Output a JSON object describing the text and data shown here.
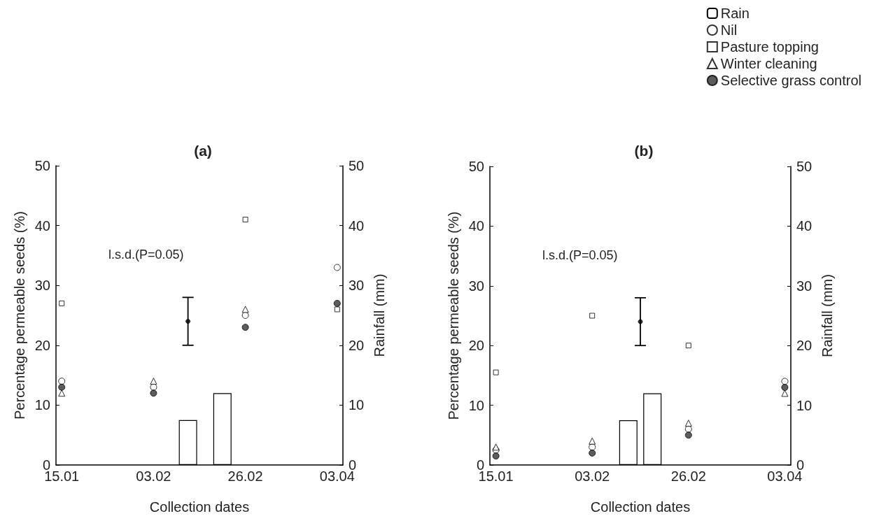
{
  "chart_data": [
    {
      "type": "scatter",
      "title": "(a)",
      "xlabel": "Collection dates",
      "ylabel": "Percentage permeable seeds (%)",
      "y2label": "Rainfall (mm)",
      "categories": [
        "15.01",
        null,
        null,
        null,
        null,
        null,
        null,
        null,
        "03.02",
        null,
        null,
        null,
        null,
        null,
        null,
        null,
        "26.02",
        null,
        null,
        null,
        null,
        null,
        null,
        null,
        "03.04"
      ],
      "ylim": [
        0,
        50
      ],
      "yticks": [
        0,
        10,
        20,
        30,
        40,
        50
      ],
      "y2lim": [
        0,
        50
      ],
      "y2ticks": [
        0,
        10,
        20,
        30,
        40,
        50
      ],
      "grid": false,
      "legend": false,
      "annotations": [
        "l.s.d.(P=0.05)"
      ],
      "series": [
        {
          "type": "bar",
          "axis": "y2",
          "color": "#ffffff",
          "values": [
            null,
            null,
            null,
            null,
            null,
            null,
            null,
            null,
            null,
            null,
            null,
            7.5,
            null,
            null,
            12,
            null,
            null,
            null,
            null,
            null,
            null,
            null,
            null,
            null,
            null
          ]
        },
        {
          "type": "scatter",
          "marker": "none",
          "color": "#000000",
          "values": [
            null,
            null,
            null,
            null,
            null,
            null,
            null,
            null,
            null,
            null,
            null,
            24,
            null,
            null,
            null,
            null,
            null,
            null,
            null,
            null,
            null,
            null,
            null,
            null,
            null
          ],
          "errors": [
            null,
            null,
            null,
            null,
            null,
            null,
            null,
            null,
            null,
            null,
            null,
            4,
            null,
            null,
            null,
            null,
            null,
            null,
            null,
            null,
            null,
            null,
            null,
            null,
            null
          ]
        },
        {
          "marker": "circle",
          "color": "#ffffff",
          "x": [
            "15.01",
            "03.02",
            "26.02",
            "03.04"
          ],
          "values": [
            14,
            13,
            25,
            33
          ]
        },
        {
          "marker": "square",
          "color": "#ffffff",
          "x": [
            "15.01",
            "03.02",
            "26.02",
            "03.04"
          ],
          "values": [
            27,
            null,
            41,
            26
          ]
        },
        {
          "marker": "triangle",
          "color": "#ffffff",
          "x": [
            "15.01",
            "03.02",
            "26.02",
            "03.04"
          ],
          "values": [
            12,
            14,
            26,
            null
          ]
        },
        {
          "marker": "circle",
          "color": "#333333",
          "x": [
            "15.01",
            "03.02",
            "26.02",
            "03.04"
          ],
          "values": [
            13,
            12,
            23,
            27
          ]
        }
      ]
    },
    {
      "type": "scatter",
      "title": "(b)",
      "xlabel": "Collection dates",
      "ylabel": "Percentage permeable seeds (%)",
      "y2label": "Rainfall (mm)",
      "categories": [
        "15.01",
        null,
        null,
        null,
        null,
        null,
        null,
        null,
        "03.02",
        null,
        null,
        null,
        null,
        null,
        null,
        null,
        "26.02",
        null,
        null,
        null,
        null,
        null,
        null,
        null,
        "03.04"
      ],
      "ylim": [
        0,
        50
      ],
      "yticks": [
        0,
        10,
        20,
        30,
        40,
        50
      ],
      "y2lim": [
        0,
        50
      ],
      "y2ticks": [
        0,
        10,
        20,
        30,
        40,
        50
      ],
      "grid": false,
      "legend": "top right",
      "annotations": [
        "l.s.d.(P=0.05)"
      ],
      "series": [
        {
          "type": "bar",
          "axis": "y2",
          "name": "Rain",
          "color": "#ffffff",
          "values": [
            null,
            null,
            null,
            null,
            null,
            null,
            null,
            null,
            null,
            null,
            null,
            7.5,
            null,
            12,
            null,
            null,
            null,
            null,
            null,
            null,
            null,
            null,
            null,
            null,
            null
          ]
        },
        {
          "type": "scatter",
          "marker": "none",
          "color": "#000000",
          "values": [
            null,
            null,
            null,
            null,
            null,
            null,
            null,
            null,
            null,
            null,
            null,
            null,
            24,
            null,
            null,
            null,
            null,
            null,
            null,
            null,
            null,
            null,
            null,
            null,
            null
          ],
          "errors": [
            null,
            null,
            null,
            null,
            null,
            null,
            null,
            null,
            null,
            null,
            null,
            null,
            4,
            null,
            null,
            null,
            null,
            null,
            null,
            null,
            null,
            null,
            null,
            null,
            null
          ]
        },
        {
          "name": "Nil",
          "marker": "circle",
          "color": "#ffffff",
          "x": [
            "15.01",
            "03.02",
            "26.02",
            "03.04"
          ],
          "values": [
            2.5,
            3,
            6,
            14
          ]
        },
        {
          "name": "Pasture topping",
          "marker": "square",
          "color": "#ffffff",
          "x": [
            "15.01",
            "03.02",
            "26.02",
            "03.04"
          ],
          "values": [
            15.5,
            25,
            20,
            null
          ]
        },
        {
          "name": "Winter cleaning",
          "marker": "triangle",
          "color": "#ffffff",
          "x": [
            "15.01",
            "03.02",
            "26.02",
            "03.04"
          ],
          "values": [
            3,
            4,
            7,
            12
          ]
        },
        {
          "name": "Selective grass control",
          "marker": "circle",
          "color": "#333333",
          "x": [
            "15.01",
            "03.02",
            "26.02",
            "03.04"
          ],
          "values": [
            1.5,
            2,
            5,
            13
          ]
        }
      ]
    }
  ]
}
